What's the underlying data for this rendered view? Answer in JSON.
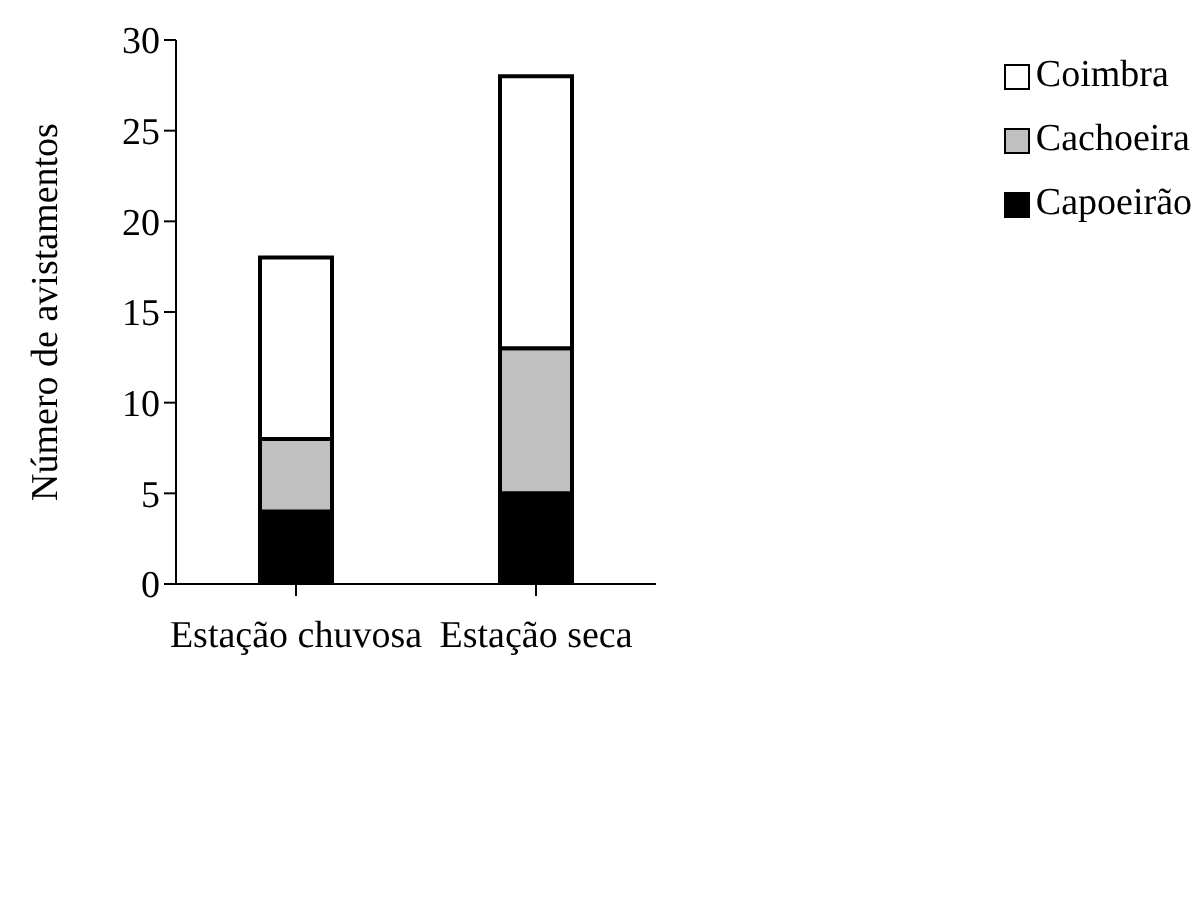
{
  "chart_data": {
    "type": "bar",
    "stacked": true,
    "ylabel": "Número de avistamentos",
    "categories": [
      "Estação chuvosa",
      "Estação seca"
    ],
    "series": [
      {
        "name": "Capoeirão",
        "color": "#000000",
        "values": [
          4,
          5
        ]
      },
      {
        "name": "Cachoeira",
        "color": "#c0c0c0",
        "values": [
          4,
          8
        ]
      },
      {
        "name": "Coimbra",
        "color": "#ffffff",
        "values": [
          10,
          15
        ]
      }
    ],
    "ylim": [
      0,
      30
    ],
    "yticks": [
      0,
      5,
      10,
      15,
      20,
      25,
      30
    ],
    "grid": false,
    "legend": "top right"
  }
}
